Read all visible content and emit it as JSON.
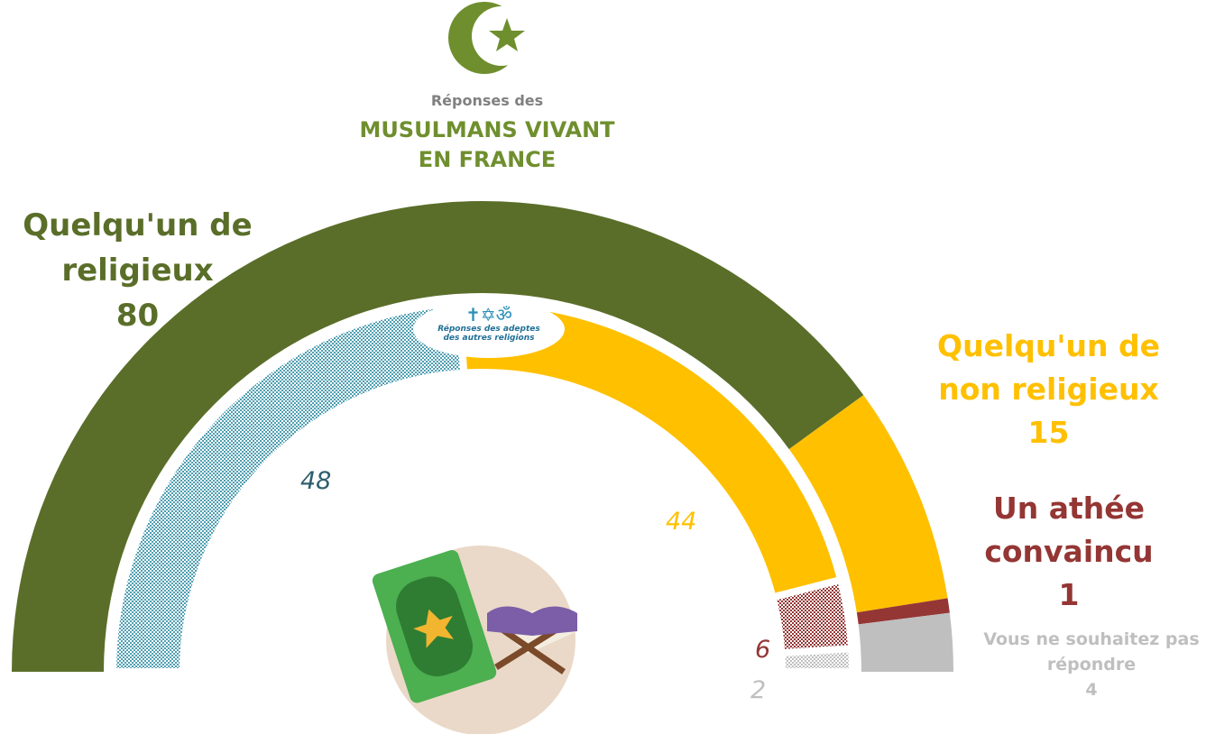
{
  "chart_data": {
    "type": "semi-donut",
    "subtitle": "Réponses des",
    "categories": [
      "Quelqu'un de religieux",
      "Quelqu'un de non religieux",
      "Un athée convaincu",
      "Vous ne souhaitez pas répondre"
    ],
    "series": [
      {
        "name": "MUSULMANS VIVANT EN FRANCE",
        "values": [
          80,
          15,
          1,
          4
        ],
        "colors": [
          "#5a6e29",
          "#ffc000",
          "#943634",
          "#bfbfbf"
        ],
        "pattern": [
          false,
          false,
          false,
          false
        ]
      },
      {
        "name": "Réponses des adeptes des autres religions",
        "values": [
          48,
          44,
          6,
          2
        ],
        "colors": [
          "#4f9fb2",
          "#ffc000",
          "#943634",
          "#bfbfbf"
        ],
        "pattern": [
          true,
          false,
          true,
          true
        ]
      }
    ]
  }
}
